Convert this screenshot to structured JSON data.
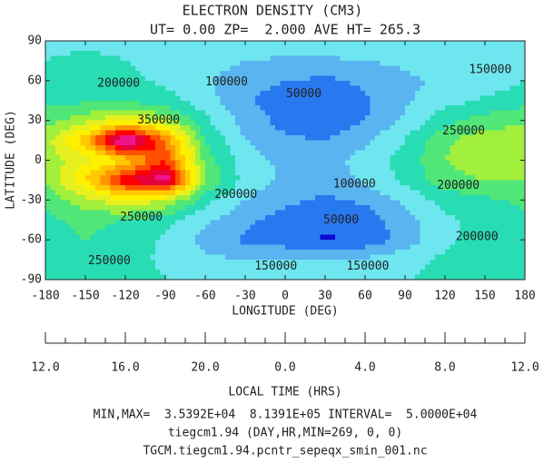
{
  "chart_data": {
    "type": "contour",
    "title": "ELECTRON DENSITY (CM3)",
    "subtitle": "UT= 0.00 ZP=  2.000 AVE HT= 265.3",
    "xlabel": "LONGITUDE (DEG)",
    "ylabel": "LATITUDE (DEG)",
    "xlim": [
      -180,
      180
    ],
    "xticks": [
      -180,
      -150,
      -120,
      -90,
      -60,
      -30,
      0,
      30,
      60,
      90,
      120,
      150,
      180
    ],
    "ylim": [
      -90,
      90
    ],
    "yticks": [
      -90,
      -60,
      -30,
      0,
      30,
      60,
      90
    ],
    "x2label": "LOCAL TIME (HRS)",
    "x2lim": [
      12,
      36
    ],
    "x2ticks": [
      {
        "value": 12,
        "label": "12.0"
      },
      {
        "value": 16,
        "label": "16.0"
      },
      {
        "value": 20,
        "label": "20.0"
      },
      {
        "value": 24,
        "label": "0.0"
      },
      {
        "value": 28,
        "label": "4.0"
      },
      {
        "value": 32,
        "label": "8.0"
      },
      {
        "value": 36,
        "label": "12.0"
      }
    ],
    "interval": 50000,
    "colors": [
      "#0a0ad2",
      "#2878f0",
      "#5ab4f0",
      "#6ee6f0",
      "#28dcb4",
      "#50e678",
      "#a0f03c",
      "#e6f01e",
      "#fff000",
      "#ffc800",
      "#ff9600",
      "#ff5000",
      "#ff0000",
      "#e6003c",
      "#f0148c",
      "#ff50c8",
      "#ff8cdc"
    ],
    "zx": [
      -180,
      -150,
      -120,
      -90,
      -60,
      -30,
      0,
      30,
      60,
      90,
      120,
      150,
      180
    ],
    "zy": [
      90,
      75,
      60,
      45,
      30,
      15,
      0,
      -15,
      -30,
      -45,
      -60,
      -75,
      -90
    ],
    "z": [
      [
        190000,
        190000,
        190000,
        190000,
        190000,
        190000,
        190000,
        190000,
        190000,
        190000,
        190000,
        190000,
        190000
      ],
      [
        200000,
        210000,
        200000,
        190000,
        170000,
        150000,
        140000,
        140000,
        150000,
        160000,
        170000,
        170000,
        190000
      ],
      [
        210000,
        220000,
        210000,
        190000,
        160000,
        120000,
        100000,
        90000,
        110000,
        140000,
        160000,
        170000,
        200000
      ],
      [
        230000,
        240000,
        240000,
        220000,
        170000,
        110000,
        70000,
        55000,
        90000,
        140000,
        180000,
        210000,
        230000
      ],
      [
        280000,
        330000,
        400000,
        330000,
        210000,
        130000,
        80000,
        60000,
        100000,
        160000,
        230000,
        270000,
        290000
      ],
      [
        330000,
        480000,
        800000,
        550000,
        250000,
        150000,
        110000,
        100000,
        140000,
        200000,
        290000,
        330000,
        340000
      ],
      [
        320000,
        380000,
        450000,
        600000,
        280000,
        170000,
        140000,
        130000,
        170000,
        220000,
        300000,
        340000,
        340000
      ],
      [
        300000,
        450000,
        650000,
        750000,
        300000,
        180000,
        140000,
        120000,
        160000,
        210000,
        280000,
        300000,
        300000
      ],
      [
        260000,
        330000,
        400000,
        350000,
        220000,
        150000,
        110000,
        90000,
        110000,
        160000,
        220000,
        240000,
        260000
      ],
      [
        240000,
        260000,
        250000,
        220000,
        160000,
        110000,
        80000,
        60000,
        70000,
        130000,
        190000,
        220000,
        240000
      ],
      [
        240000,
        250000,
        230000,
        190000,
        130000,
        90000,
        70000,
        45000,
        60000,
        120000,
        190000,
        220000,
        240000
      ],
      [
        240000,
        240000,
        220000,
        190000,
        160000,
        150000,
        150000,
        150000,
        160000,
        180000,
        210000,
        230000,
        240000
      ],
      [
        230000,
        230000,
        220000,
        200000,
        190000,
        190000,
        190000,
        190000,
        190000,
        200000,
        210000,
        220000,
        230000
      ]
    ],
    "contour_labels": [
      {
        "value": 200000,
        "x": -125,
        "y": 58
      },
      {
        "value": 350000,
        "x": -95,
        "y": 30
      },
      {
        "value": 250000,
        "x": -108,
        "y": -43
      },
      {
        "value": 200000,
        "x": -37,
        "y": -26
      },
      {
        "value": 250000,
        "x": -132,
        "y": -76
      },
      {
        "value": 100000,
        "x": -44,
        "y": 59
      },
      {
        "value": 50000,
        "x": 14,
        "y": 50
      },
      {
        "value": 150000,
        "x": 154,
        "y": 68
      },
      {
        "value": 250000,
        "x": 134,
        "y": 22
      },
      {
        "value": 200000,
        "x": 130,
        "y": -19
      },
      {
        "value": 100000,
        "x": 52,
        "y": -18
      },
      {
        "value": 50000,
        "x": 42,
        "y": -45
      },
      {
        "value": 200000,
        "x": 144,
        "y": -58
      },
      {
        "value": 150000,
        "x": -7,
        "y": -80
      },
      {
        "value": 150000,
        "x": 62,
        "y": -80
      }
    ],
    "footer": [
      "MIN,MAX=  3.5392E+04  8.1391E+05 INTERVAL=  5.0000E+04",
      "tiegcm1.94 (DAY,HR,MIN=269, 0, 0)",
      "TGCM.tiegcm1.94.pcntr_sepeqx_smin_001.nc"
    ]
  }
}
